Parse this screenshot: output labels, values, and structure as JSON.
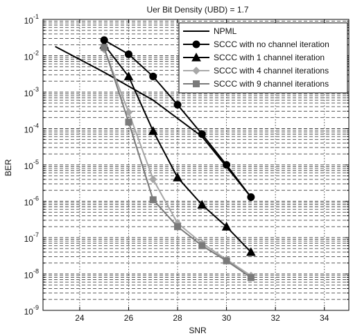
{
  "chart_data": {
    "type": "line",
    "title": "Uer Bit Density (UBD) = 1.7",
    "xlabel": "SNR",
    "ylabel": "BER",
    "xlim": [
      22.5,
      35
    ],
    "ylim": [
      1e-09,
      0.1
    ],
    "yscale": "log",
    "grid": true,
    "legend_position": "top-right",
    "x_ticks": [
      24,
      26,
      28,
      30,
      32,
      34
    ],
    "y_ticks": [
      {
        "value": 1e-09,
        "base": "10",
        "exp": "-9"
      },
      {
        "value": 1e-08,
        "base": "10",
        "exp": "-8"
      },
      {
        "value": 1e-07,
        "base": "10",
        "exp": "-7"
      },
      {
        "value": 1e-06,
        "base": "10",
        "exp": "-6"
      },
      {
        "value": 1e-05,
        "base": "10",
        "exp": "-5"
      },
      {
        "value": 0.0001,
        "base": "10",
        "exp": "-4"
      },
      {
        "value": 0.001,
        "base": "10",
        "exp": "-3"
      },
      {
        "value": 0.01,
        "base": "10",
        "exp": "-2"
      },
      {
        "value": 0.1,
        "base": "10",
        "exp": "-1"
      }
    ],
    "series": [
      {
        "name": "NPML",
        "marker": "none",
        "color": "#000000",
        "x": [
          23,
          25,
          27,
          29,
          31
        ],
        "y": [
          0.018,
          0.0035,
          0.0006,
          6e-05,
          1.3e-06
        ]
      },
      {
        "name": "SCCC with no channel iteration",
        "marker": "circle",
        "color": "#000000",
        "x": [
          25,
          26,
          27,
          28,
          29,
          30,
          31
        ],
        "y": [
          0.027,
          0.011,
          0.0027,
          0.00045,
          7e-05,
          1e-05,
          1.3e-06
        ]
      },
      {
        "name": "SCCC with 1 channel iteration",
        "marker": "triangle",
        "color": "#000000",
        "x": [
          25,
          26,
          27,
          28,
          29,
          30,
          31
        ],
        "y": [
          0.02,
          0.0027,
          8.5e-05,
          4.5e-06,
          8e-07,
          2e-07,
          4e-08
        ]
      },
      {
        "name": "SCCC with 4 channel iterations",
        "marker": "diamond",
        "color": "#a8a8a8",
        "x": [
          25,
          26,
          27,
          28,
          29,
          30,
          31
        ],
        "y": [
          0.015,
          0.00028,
          4e-06,
          2.5e-07,
          7e-08,
          2.5e-08,
          9e-09
        ]
      },
      {
        "name": "SCCC with 9 channel iterations",
        "marker": "square",
        "color": "#7a7a7a",
        "x": [
          25,
          26,
          27,
          28,
          29,
          30,
          31
        ],
        "y": [
          0.017,
          0.00015,
          1.1e-06,
          2e-07,
          6e-08,
          2.3e-08,
          8e-09
        ]
      }
    ]
  }
}
